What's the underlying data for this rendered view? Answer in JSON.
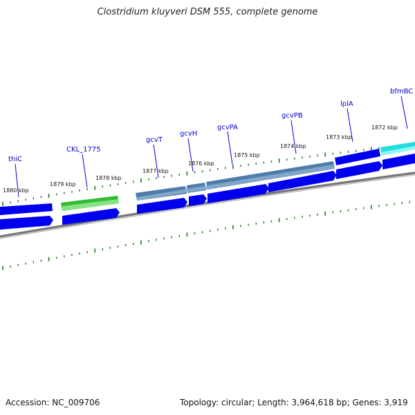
{
  "title": "Clostridium kluyveri DSM 555, complete genome",
  "footer": {
    "accession": "Accession: NC_009706",
    "summary": "Topology: circular; Length: 3,964,618 bp; Genes: 3,919"
  },
  "colors": {
    "backbone": "#777777",
    "tick": "#1a7a1a",
    "cds": "#0000ee",
    "highlight_green": "#33bb33",
    "operon_steel": "#4b7cab",
    "cyan": "#22dddd",
    "label": "#0000cc"
  },
  "position_labels": [
    "1880 kbp",
    "1879 kbp",
    "1878 kbp",
    "1877 kbp",
    "1876 kbp",
    "1875 kbp",
    "1874 kbp",
    "1873 kbp",
    "1872 kbp"
  ],
  "gene_labels": [
    "thiC",
    "CKL_1775",
    "gcvT",
    "gcvH",
    "gcvPA",
    "gcvPB",
    "lplA",
    "bfmBC"
  ]
}
